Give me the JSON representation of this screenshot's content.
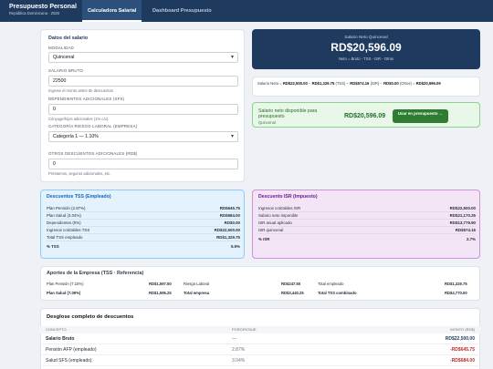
{
  "header": {
    "title": "Presupuesto Personal",
    "subtitle": "República Dominicana · 2026",
    "tabs": [
      {
        "label": "Calculadora Salarial",
        "active": true
      },
      {
        "label": "Dashboard Presupuesto",
        "active": false
      }
    ]
  },
  "form": {
    "title": "Datos del salario",
    "modalidad": {
      "label": "MODALIDAD",
      "value": "Quincenal"
    },
    "salario": {
      "label": "SALARIO BRUTO",
      "value": "22500",
      "hint": "Ingrese el monto antes de descuentos"
    },
    "dependientes": {
      "label": "DEPENDIENTES ADICIONALES (SFS)",
      "value": "0",
      "hint": "Cónyuge/hijos adicionales (1% c/u)"
    },
    "riesgo": {
      "label": "CATEGORÍA RIESGO LABORAL (EMPRESA)",
      "value": "Categoría 1 — 1.10%"
    },
    "otros": {
      "label": "OTROS DESCUENTOS ADICIONALES (RD$)",
      "value": "0",
      "hint": "Préstamos, seguros adicionales, etc."
    }
  },
  "hero": {
    "label": "Salario Neto Quincenal",
    "value": "RD$20,596.09",
    "formula": "Neto = Bruto - TSS - ISR - Otros"
  },
  "breakdown": {
    "prefix": "Salario Neto =",
    "bruto": "RD$22,500.00",
    "tss": "RD$1,329.75",
    "tss_tag": "(TSS)",
    "isr": "RD$574.16",
    "isr_tag": "(ISR)",
    "otros": "RD$0.00",
    "otros_tag": "(Otros)",
    "result": "RD$20,596.09"
  },
  "disponible": {
    "label": "Salario neto disponible para presupuesto",
    "sub": "Quincenal",
    "value": "RD$20,596.09",
    "button": "Usar en presupuesto →"
  },
  "tss": {
    "title": "Descuentos TSS (Empleado)",
    "rows": [
      {
        "label": "Plan Pensión (2.87%)",
        "value": "RD$645.75"
      },
      {
        "label": "Plan Salud (3.04%)",
        "value": "RD$684.00"
      },
      {
        "label": "Dependientes (0%)",
        "value": "RD$0.00"
      },
      {
        "label": "Ingresos cotizables TSS",
        "value": "RD$22,500.00"
      },
      {
        "label": "Total TSS empleado",
        "value": "RD$1,329.75"
      },
      {
        "label": "% TSS",
        "value": "5.9%"
      }
    ]
  },
  "isr": {
    "title": "Descuento ISR (Impuesto)",
    "rows": [
      {
        "label": "Ingresos cotizables ISR",
        "value": "RD$22,500.00"
      },
      {
        "label": "Salario neto imponible",
        "value": "RD$21,170.25"
      },
      {
        "label": "ISR anual aplicado",
        "value": "RD$13,779.90"
      },
      {
        "label": "ISR quincenal",
        "value": "RD$574.16"
      },
      {
        "label": "% ISR",
        "value": "2.7%"
      }
    ]
  },
  "empresa": {
    "title": "Aportes de la Empresa (TSS · Referencia)",
    "row1": [
      {
        "label": "Plan Pensión (7.10%)",
        "value": "RD$1,597.50"
      },
      {
        "label": "Riesgo Laboral",
        "value": "RD$247.50"
      },
      {
        "label": "Total empleado",
        "value": "RD$1,329.75"
      }
    ],
    "row2": [
      {
        "label": "Plan Salud (7.09%)",
        "value": "RD$1,595.25"
      },
      {
        "label": "Total empresa",
        "value": "RD$3,440.25"
      },
      {
        "label": "Total TSS combinado",
        "value": "RD$4,770.00"
      }
    ]
  },
  "desglose": {
    "title": "Desglose completo de descuentos",
    "headers": {
      "concepto": "CONCEPTO",
      "porcentaje": "PORCENTAJE",
      "monto": "MONTO (RD$)"
    },
    "rows": [
      {
        "concepto": "Salario Bruto",
        "porcentaje": "—",
        "monto": "RD$22,500.00"
      },
      {
        "concepto": "Pensión AFP (empleado)",
        "porcentaje": "2.87%",
        "monto": "-RD$645.75"
      },
      {
        "concepto": "Salud SFS (empleado)",
        "porcentaje": "3.04%",
        "monto": "-RD$684.00"
      }
    ]
  },
  "colors": {
    "primary": "#1e3a5f",
    "success": "#2e7d32",
    "negative": "#c62828",
    "tss_bg": "#e3f2fd",
    "isr_bg": "#f3e5f5"
  }
}
